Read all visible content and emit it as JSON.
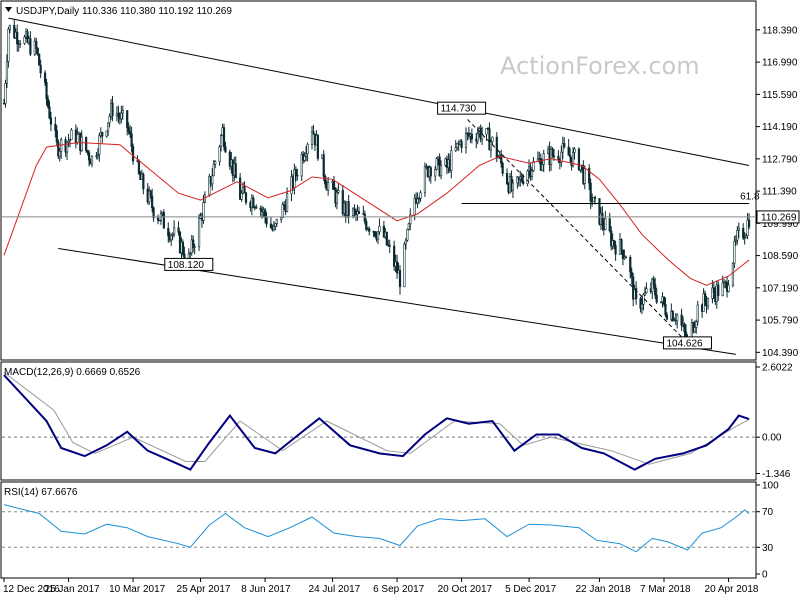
{
  "chart_data": [
    {
      "type": "candlestick",
      "panel": "price",
      "title": "USDJPY,Daily  110.336 110.380 110.192 110.269",
      "watermark": "ActionForex.com",
      "y_ticks": [
        "118.390",
        "116.990",
        "115.590",
        "114.190",
        "112.790",
        "111.390",
        "109.990",
        "108.590",
        "107.190",
        "105.790",
        "104.390"
      ],
      "y_tick_values": [
        118.39,
        116.99,
        115.59,
        114.19,
        112.79,
        111.39,
        109.99,
        108.59,
        107.19,
        105.79,
        104.39
      ],
      "ylim": [
        104.1,
        119.6
      ],
      "current_price": "110.269",
      "current_price_value": 110.269,
      "x_dates": [
        "2016-12-12",
        "2017-01-25",
        "2017-03-10",
        "2017-04-25",
        "2017-06-08",
        "2017-07-24",
        "2017-09-06",
        "2017-10-20",
        "2017-12-05",
        "2018-01-22",
        "2018-03-07",
        "2018-04-20"
      ],
      "annotations": [
        {
          "label": "114.730",
          "date": "2017-10-20",
          "value": 114.73
        },
        {
          "label": "108.120",
          "date": "2017-04-17",
          "value": 108.12
        },
        {
          "label": "104.626",
          "date": "2018-03-23",
          "value": 104.626
        },
        {
          "label": "61.8",
          "date": "2018-05-02",
          "value": 110.85
        }
      ],
      "fib_level": {
        "label": "61.8",
        "value": 110.85,
        "from": "2017-10-20",
        "to": "2018-05-04"
      },
      "channel_upper": [
        {
          "date": "2016-12-15",
          "value": 118.9
        },
        {
          "date": "2018-05-04",
          "value": 112.5
        }
      ],
      "channel_lower": [
        {
          "date": "2017-01-18",
          "value": 108.9
        },
        {
          "date": "2018-04-25",
          "value": 104.3
        }
      ],
      "dashed_line": [
        {
          "date": "2017-10-24",
          "value": 114.5
        },
        {
          "date": "2018-03-23",
          "value": 104.8
        }
      ],
      "close_path": [
        {
          "date": "2016-12-12",
          "value": 115.2
        },
        {
          "date": "2016-12-15",
          "value": 118.5
        },
        {
          "date": "2017-01-03",
          "value": 117.5
        },
        {
          "date": "2017-01-17",
          "value": 113.3
        },
        {
          "date": "2017-01-30",
          "value": 113.8
        },
        {
          "date": "2017-02-10",
          "value": 112.8
        },
        {
          "date": "2017-02-24",
          "value": 115.0
        },
        {
          "date": "2017-03-06",
          "value": 114.2
        },
        {
          "date": "2017-03-14",
          "value": 112.0
        },
        {
          "date": "2017-03-24",
          "value": 110.6
        },
        {
          "date": "2017-04-10",
          "value": 109.2
        },
        {
          "date": "2017-04-17",
          "value": 108.4
        },
        {
          "date": "2017-04-28",
          "value": 110.9
        },
        {
          "date": "2017-05-10",
          "value": 114.0
        },
        {
          "date": "2017-05-22",
          "value": 111.2
        },
        {
          "date": "2017-06-02",
          "value": 111.0
        },
        {
          "date": "2017-06-14",
          "value": 109.6
        },
        {
          "date": "2017-06-26",
          "value": 111.6
        },
        {
          "date": "2017-07-10",
          "value": 114.2
        },
        {
          "date": "2017-07-20",
          "value": 111.8
        },
        {
          "date": "2017-08-01",
          "value": 110.6
        },
        {
          "date": "2017-08-15",
          "value": 110.1
        },
        {
          "date": "2017-08-28",
          "value": 109.4
        },
        {
          "date": "2017-09-08",
          "value": 107.6
        },
        {
          "date": "2017-09-18",
          "value": 111.1
        },
        {
          "date": "2017-09-28",
          "value": 112.5
        },
        {
          "date": "2017-10-10",
          "value": 112.4
        },
        {
          "date": "2017-10-20",
          "value": 113.6
        },
        {
          "date": "2017-11-01",
          "value": 114.0
        },
        {
          "date": "2017-11-10",
          "value": 113.5
        },
        {
          "date": "2017-11-24",
          "value": 111.3
        },
        {
          "date": "2017-12-04",
          "value": 112.4
        },
        {
          "date": "2017-12-15",
          "value": 112.8
        },
        {
          "date": "2017-12-27",
          "value": 113.1
        },
        {
          "date": "2018-01-08",
          "value": 112.7
        },
        {
          "date": "2018-01-18",
          "value": 110.8
        },
        {
          "date": "2018-01-31",
          "value": 109.2
        },
        {
          "date": "2018-02-09",
          "value": 108.7
        },
        {
          "date": "2018-02-16",
          "value": 106.4
        },
        {
          "date": "2018-02-27",
          "value": 107.2
        },
        {
          "date": "2018-03-08",
          "value": 106.3
        },
        {
          "date": "2018-03-16",
          "value": 106.0
        },
        {
          "date": "2018-03-23",
          "value": 104.8
        },
        {
          "date": "2018-03-30",
          "value": 106.3
        },
        {
          "date": "2018-04-10",
          "value": 107.0
        },
        {
          "date": "2018-04-18",
          "value": 107.2
        },
        {
          "date": "2018-04-26",
          "value": 109.3
        },
        {
          "date": "2018-05-02",
          "value": 109.8
        },
        {
          "date": "2018-05-04",
          "value": 110.27
        }
      ],
      "moving_average": [
        {
          "date": "2016-12-12",
          "value": 108.6
        },
        {
          "date": "2017-01-03",
          "value": 112.5
        },
        {
          "date": "2017-01-10",
          "value": 113.3
        },
        {
          "date": "2017-02-01",
          "value": 113.5
        },
        {
          "date": "2017-03-01",
          "value": 113.4
        },
        {
          "date": "2017-03-20",
          "value": 112.4
        },
        {
          "date": "2017-04-10",
          "value": 111.3
        },
        {
          "date": "2017-04-25",
          "value": 111.0
        },
        {
          "date": "2017-05-20",
          "value": 111.8
        },
        {
          "date": "2017-06-10",
          "value": 111.1
        },
        {
          "date": "2017-06-25",
          "value": 111.4
        },
        {
          "date": "2017-07-10",
          "value": 112.0
        },
        {
          "date": "2017-07-24",
          "value": 111.9
        },
        {
          "date": "2017-08-15",
          "value": 111.0
        },
        {
          "date": "2017-09-06",
          "value": 110.1
        },
        {
          "date": "2017-09-20",
          "value": 110.4
        },
        {
          "date": "2017-10-10",
          "value": 111.3
        },
        {
          "date": "2017-11-01",
          "value": 112.5
        },
        {
          "date": "2017-11-15",
          "value": 112.9
        },
        {
          "date": "2017-12-05",
          "value": 112.6
        },
        {
          "date": "2017-12-20",
          "value": 112.8
        },
        {
          "date": "2018-01-10",
          "value": 112.5
        },
        {
          "date": "2018-01-22",
          "value": 111.9
        },
        {
          "date": "2018-02-05",
          "value": 110.8
        },
        {
          "date": "2018-02-20",
          "value": 109.5
        },
        {
          "date": "2018-03-10",
          "value": 108.4
        },
        {
          "date": "2018-03-25",
          "value": 107.6
        },
        {
          "date": "2018-04-05",
          "value": 107.3
        },
        {
          "date": "2018-04-20",
          "value": 107.7
        },
        {
          "date": "2018-05-04",
          "value": 108.4
        }
      ],
      "colors": {
        "candles": "#0b2a30",
        "ma": "#d62020",
        "channel": "#000000",
        "price_line": "#888888"
      }
    },
    {
      "type": "line",
      "panel": "macd",
      "title": "MACD(12,26,9) 0.6669 0.6526",
      "y_ticks": [
        "2.6022",
        "0.00",
        "-1.346"
      ],
      "y_tick_values": [
        2.6022,
        0.0,
        -1.346
      ],
      "ylim": [
        -1.55,
        2.75
      ],
      "series": [
        {
          "name": "",
          "color": "#000080",
          "points": [
            {
              "date": "2016-12-12",
              "value": 2.3
            },
            {
              "date": "2017-01-10",
              "value": 0.6
            },
            {
              "date": "2017-01-20",
              "value": -0.4
            },
            {
              "date": "2017-02-05",
              "value": -0.7
            },
            {
              "date": "2017-02-20",
              "value": -0.3
            },
            {
              "date": "2017-03-06",
              "value": 0.2
            },
            {
              "date": "2017-03-20",
              "value": -0.5
            },
            {
              "date": "2017-04-10",
              "value": -1.0
            },
            {
              "date": "2017-04-18",
              "value": -1.2
            },
            {
              "date": "2017-05-01",
              "value": -0.2
            },
            {
              "date": "2017-05-15",
              "value": 0.8
            },
            {
              "date": "2017-06-01",
              "value": -0.4
            },
            {
              "date": "2017-06-15",
              "value": -0.6
            },
            {
              "date": "2017-07-01",
              "value": 0.1
            },
            {
              "date": "2017-07-15",
              "value": 0.7
            },
            {
              "date": "2017-08-05",
              "value": -0.3
            },
            {
              "date": "2017-08-25",
              "value": -0.6
            },
            {
              "date": "2017-09-10",
              "value": -0.7
            },
            {
              "date": "2017-09-25",
              "value": 0.1
            },
            {
              "date": "2017-10-10",
              "value": 0.7
            },
            {
              "date": "2017-10-25",
              "value": 0.5
            },
            {
              "date": "2017-11-10",
              "value": 0.6
            },
            {
              "date": "2017-11-25",
              "value": -0.5
            },
            {
              "date": "2017-12-10",
              "value": 0.1
            },
            {
              "date": "2017-12-25",
              "value": 0.1
            },
            {
              "date": "2018-01-10",
              "value": -0.4
            },
            {
              "date": "2018-01-25",
              "value": -0.6
            },
            {
              "date": "2018-02-15",
              "value": -1.2
            },
            {
              "date": "2018-03-01",
              "value": -0.8
            },
            {
              "date": "2018-03-20",
              "value": -0.6
            },
            {
              "date": "2018-04-05",
              "value": -0.3
            },
            {
              "date": "2018-04-20",
              "value": 0.3
            },
            {
              "date": "2018-04-27",
              "value": 0.8
            },
            {
              "date": "2018-05-04",
              "value": 0.67
            }
          ]
        },
        {
          "name": "",
          "color": "#9a9a9a",
          "points": [
            {
              "date": "2016-12-12",
              "value": 2.4
            },
            {
              "date": "2017-01-15",
              "value": 1.0
            },
            {
              "date": "2017-01-28",
              "value": -0.2
            },
            {
              "date": "2017-02-12",
              "value": -0.6
            },
            {
              "date": "2017-03-10",
              "value": 0.0
            },
            {
              "date": "2017-04-15",
              "value": -0.9
            },
            {
              "date": "2017-04-28",
              "value": -0.9
            },
            {
              "date": "2017-05-22",
              "value": 0.6
            },
            {
              "date": "2017-06-20",
              "value": -0.5
            },
            {
              "date": "2017-07-20",
              "value": 0.6
            },
            {
              "date": "2017-08-30",
              "value": -0.5
            },
            {
              "date": "2017-09-15",
              "value": -0.6
            },
            {
              "date": "2017-10-15",
              "value": 0.6
            },
            {
              "date": "2017-11-15",
              "value": 0.5
            },
            {
              "date": "2017-12-01",
              "value": -0.3
            },
            {
              "date": "2017-12-20",
              "value": 0.0
            },
            {
              "date": "2018-01-30",
              "value": -0.5
            },
            {
              "date": "2018-02-25",
              "value": -1.0
            },
            {
              "date": "2018-03-25",
              "value": -0.6
            },
            {
              "date": "2018-04-25",
              "value": 0.4
            },
            {
              "date": "2018-05-04",
              "value": 0.65
            }
          ]
        }
      ],
      "colors": {
        "zero_line": "#777777"
      }
    },
    {
      "type": "line",
      "panel": "rsi",
      "title": "RSI(14) 67.6676",
      "y_ticks": [
        "100",
        "70",
        "30",
        "0"
      ],
      "y_tick_values": [
        100,
        70,
        30,
        0
      ],
      "ylim": [
        0,
        100
      ],
      "levels": [
        70,
        30
      ],
      "series": [
        {
          "name": "",
          "color": "#1e8fd6",
          "points": [
            {
              "date": "2016-12-12",
              "value": 78
            },
            {
              "date": "2016-12-26",
              "value": 72
            },
            {
              "date": "2017-01-05",
              "value": 68
            },
            {
              "date": "2017-01-20",
              "value": 48
            },
            {
              "date": "2017-02-05",
              "value": 45
            },
            {
              "date": "2017-02-20",
              "value": 56
            },
            {
              "date": "2017-03-06",
              "value": 52
            },
            {
              "date": "2017-03-20",
              "value": 42
            },
            {
              "date": "2017-04-10",
              "value": 34
            },
            {
              "date": "2017-04-18",
              "value": 30
            },
            {
              "date": "2017-05-01",
              "value": 55
            },
            {
              "date": "2017-05-12",
              "value": 68
            },
            {
              "date": "2017-05-25",
              "value": 52
            },
            {
              "date": "2017-06-10",
              "value": 42
            },
            {
              "date": "2017-06-25",
              "value": 52
            },
            {
              "date": "2017-07-10",
              "value": 64
            },
            {
              "date": "2017-07-25",
              "value": 46
            },
            {
              "date": "2017-08-10",
              "value": 42
            },
            {
              "date": "2017-08-25",
              "value": 40
            },
            {
              "date": "2017-09-08",
              "value": 32
            },
            {
              "date": "2017-09-20",
              "value": 54
            },
            {
              "date": "2017-10-05",
              "value": 62
            },
            {
              "date": "2017-10-20",
              "value": 60
            },
            {
              "date": "2017-11-05",
              "value": 62
            },
            {
              "date": "2017-11-20",
              "value": 42
            },
            {
              "date": "2017-12-05",
              "value": 56
            },
            {
              "date": "2017-12-20",
              "value": 55
            },
            {
              "date": "2018-01-08",
              "value": 52
            },
            {
              "date": "2018-01-20",
              "value": 38
            },
            {
              "date": "2018-02-05",
              "value": 34
            },
            {
              "date": "2018-02-16",
              "value": 25
            },
            {
              "date": "2018-02-27",
              "value": 40
            },
            {
              "date": "2018-03-10",
              "value": 36
            },
            {
              "date": "2018-03-23",
              "value": 27
            },
            {
              "date": "2018-04-02",
              "value": 46
            },
            {
              "date": "2018-04-15",
              "value": 52
            },
            {
              "date": "2018-04-26",
              "value": 65
            },
            {
              "date": "2018-05-01",
              "value": 72
            },
            {
              "date": "2018-05-04",
              "value": 67.7
            }
          ]
        }
      ],
      "colors": {
        "levels": "#888888"
      }
    }
  ],
  "x_axis": {
    "labels": [
      "12 Dec 2016",
      "25 Jan 2017",
      "10 Mar 2017",
      "25 Apr 2017",
      "8 Jun 2017",
      "24 Jul 2017",
      "6 Sep 2017",
      "20 Oct 2017",
      "5 Dec 2017",
      "22 Jan 2018",
      "7 Mar 2018",
      "20 Apr 2018"
    ],
    "dates": [
      "2016-12-12",
      "2017-01-25",
      "2017-03-10",
      "2017-04-25",
      "2017-06-08",
      "2017-07-24",
      "2017-09-06",
      "2017-10-20",
      "2017-12-05",
      "2018-01-22",
      "2018-03-07",
      "2018-04-20"
    ],
    "range": [
      "2016-12-12",
      "2018-05-06"
    ]
  }
}
